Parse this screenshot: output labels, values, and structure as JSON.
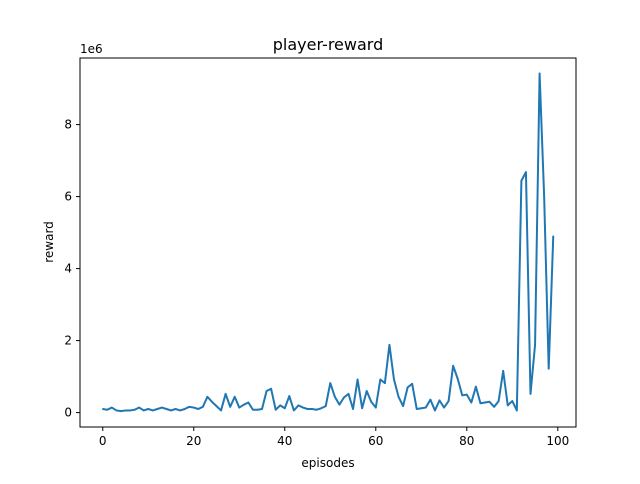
{
  "chart_data": {
    "type": "line",
    "title": "player-reward",
    "xlabel": "episodes",
    "ylabel": "reward",
    "offset_label": "1e6",
    "xlim": [
      -5,
      104
    ],
    "ylim": [
      -0.4,
      9.85
    ],
    "y_scale_note": "values in units of 1e6",
    "x_ticks": [
      0,
      20,
      40,
      60,
      80,
      100
    ],
    "y_ticks": [
      0,
      2,
      4,
      6,
      8
    ],
    "grid": false,
    "series": [
      {
        "color": "#1f77b4",
        "x": [
          0,
          1,
          2,
          3,
          4,
          5,
          6,
          7,
          8,
          9,
          10,
          11,
          12,
          13,
          14,
          15,
          16,
          17,
          18,
          19,
          20,
          21,
          22,
          23,
          24,
          25,
          26,
          27,
          28,
          29,
          30,
          31,
          32,
          33,
          34,
          35,
          36,
          37,
          38,
          39,
          40,
          41,
          42,
          43,
          44,
          45,
          46,
          47,
          48,
          49,
          50,
          51,
          52,
          53,
          54,
          55,
          56,
          57,
          58,
          59,
          60,
          61,
          62,
          63,
          64,
          65,
          66,
          67,
          68,
          69,
          70,
          71,
          72,
          73,
          74,
          75,
          76,
          77,
          78,
          79,
          80,
          81,
          82,
          83,
          84,
          85,
          86,
          87,
          88,
          89,
          90,
          91,
          92,
          93,
          94,
          95,
          96,
          97,
          98,
          99
        ],
        "y": [
          0.1,
          0.08,
          0.14,
          0.06,
          0.04,
          0.06,
          0.06,
          0.08,
          0.14,
          0.06,
          0.1,
          0.06,
          0.1,
          0.14,
          0.1,
          0.06,
          0.1,
          0.06,
          0.1,
          0.16,
          0.14,
          0.1,
          0.16,
          0.44,
          0.3,
          0.18,
          0.06,
          0.52,
          0.16,
          0.44,
          0.14,
          0.22,
          0.28,
          0.08,
          0.08,
          0.1,
          0.6,
          0.66,
          0.08,
          0.2,
          0.12,
          0.46,
          0.06,
          0.2,
          0.14,
          0.1,
          0.1,
          0.08,
          0.12,
          0.18,
          0.82,
          0.44,
          0.22,
          0.42,
          0.52,
          0.1,
          0.92,
          0.12,
          0.6,
          0.3,
          0.14,
          0.92,
          0.82,
          1.88,
          0.92,
          0.44,
          0.18,
          0.7,
          0.8,
          0.1,
          0.12,
          0.14,
          0.36,
          0.06,
          0.34,
          0.14,
          0.32,
          1.3,
          0.94,
          0.48,
          0.5,
          0.28,
          0.72,
          0.26,
          0.28,
          0.3,
          0.16,
          0.32,
          1.16,
          0.2,
          0.32,
          0.06,
          6.44,
          6.68,
          0.52,
          1.88,
          9.42,
          6.0,
          1.22,
          4.9
        ]
      }
    ]
  }
}
